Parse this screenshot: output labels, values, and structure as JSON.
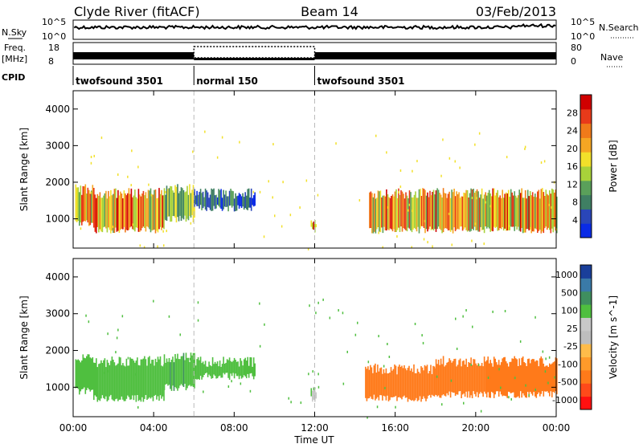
{
  "header": {
    "station": "Clyde River (fitACF)",
    "beam": "Beam 14",
    "date": "03/Feb/2013"
  },
  "aux_panels": {
    "nsky_label": "N.Sky",
    "nsky_ticks": [
      "10^5",
      "10^0"
    ],
    "nsearch_label": "N.Search",
    "nsearch_ticks": [
      "10^5",
      "10^0"
    ],
    "freq_label": "Freq.",
    "freq_unit": "[MHz]",
    "freq_ticks": [
      "18",
      "8"
    ],
    "nave_label": "Nave",
    "nave_ticks": [
      "80",
      "0"
    ],
    "cpid_label": "CPID",
    "cpid_segments": [
      {
        "name": "twofsound 3501",
        "start_h": 0,
        "end_h": 6
      },
      {
        "name": "normal 150",
        "start_h": 6,
        "end_h": 12
      },
      {
        "name": "twofsound 3501",
        "start_h": 12,
        "end_h": 24
      }
    ]
  },
  "colors": {
    "power": [
      "#0a2be6",
      "#2a46b8",
      "#3f7f63",
      "#5aa05a",
      "#a8d23a",
      "#f2e02a",
      "#f5a623",
      "#f07a1a",
      "#e83a1a",
      "#d00000"
    ],
    "velocity": [
      "#ff1010",
      "#ff4a1a",
      "#ff7a1a",
      "#ff9a2a",
      "#ffbc4a",
      "#bebebe",
      "#c8c8c8",
      "#4fbf3f",
      "#3f8f5f",
      "#3a7aa8",
      "#1a3f9a"
    ]
  },
  "chart_data": [
    {
      "type": "heatmap",
      "name": "power-panel",
      "xlabel": "Time UT",
      "ylabel": "Slant Range [km]",
      "x_ticks": [
        "00:00",
        "04:00",
        "08:00",
        "12:00",
        "16:00",
        "20:00",
        "00:00"
      ],
      "xlim": [
        0,
        24
      ],
      "ylim": [
        200,
        4500
      ],
      "y_ticks": [
        1000,
        2000,
        3000,
        4000
      ],
      "mode_change_lines_h": [
        6,
        12
      ],
      "colorbar": {
        "label": "Power [dB]",
        "range": [
          0,
          32
        ],
        "ticks": [
          4,
          8,
          12,
          16,
          20,
          24,
          28
        ]
      },
      "echo_regions": [
        {
          "t0": 0.1,
          "t1": 1.0,
          "r0": 900,
          "r1": 1800,
          "level": 18
        },
        {
          "t0": 1.0,
          "t1": 4.5,
          "r0": 700,
          "r1": 1700,
          "level": 22
        },
        {
          "t0": 4.5,
          "t1": 6.0,
          "r0": 1000,
          "r1": 1800,
          "level": 12
        },
        {
          "t0": 6.0,
          "t1": 9.0,
          "r0": 1300,
          "r1": 1700,
          "level": 6
        },
        {
          "t0": 11.8,
          "t1": 12.1,
          "r0": 700,
          "r1": 900,
          "level": 26
        },
        {
          "t0": 14.7,
          "t1": 24.0,
          "r0": 700,
          "r1": 1700,
          "level": 20
        }
      ]
    },
    {
      "type": "heatmap",
      "name": "velocity-panel",
      "xlabel": "Time UT",
      "ylabel": "Slant Range [km]",
      "x_ticks": [
        "00:00",
        "04:00",
        "08:00",
        "12:00",
        "16:00",
        "20:00",
        "00:00"
      ],
      "xlim": [
        0,
        24
      ],
      "ylim": [
        200,
        4500
      ],
      "y_ticks": [
        1000,
        2000,
        3000,
        4000
      ],
      "mode_change_lines_h": [
        6,
        12
      ],
      "colorbar": {
        "label": "Velocity [m s^-1]",
        "ticks": [
          1000,
          500,
          100,
          25,
          -25,
          -100,
          -500,
          -1000
        ]
      },
      "echo_regions": [
        {
          "t0": 0.1,
          "t1": 1.0,
          "r0": 900,
          "r1": 1800,
          "level": 40
        },
        {
          "t0": 1.0,
          "t1": 4.5,
          "r0": 700,
          "r1": 1700,
          "level": 60
        },
        {
          "t0": 4.5,
          "t1": 6.0,
          "r0": 1000,
          "r1": 1800,
          "level": 80
        },
        {
          "t0": 6.0,
          "t1": 9.0,
          "r0": 1300,
          "r1": 1700,
          "level": 70
        },
        {
          "t0": 11.8,
          "t1": 12.1,
          "r0": 700,
          "r1": 900,
          "level": 20
        },
        {
          "t0": 14.5,
          "t1": 18.0,
          "r0": 700,
          "r1": 1500,
          "level": -150
        },
        {
          "t0": 18.0,
          "t1": 24.0,
          "r0": 800,
          "r1": 1700,
          "level": -200
        }
      ]
    }
  ]
}
